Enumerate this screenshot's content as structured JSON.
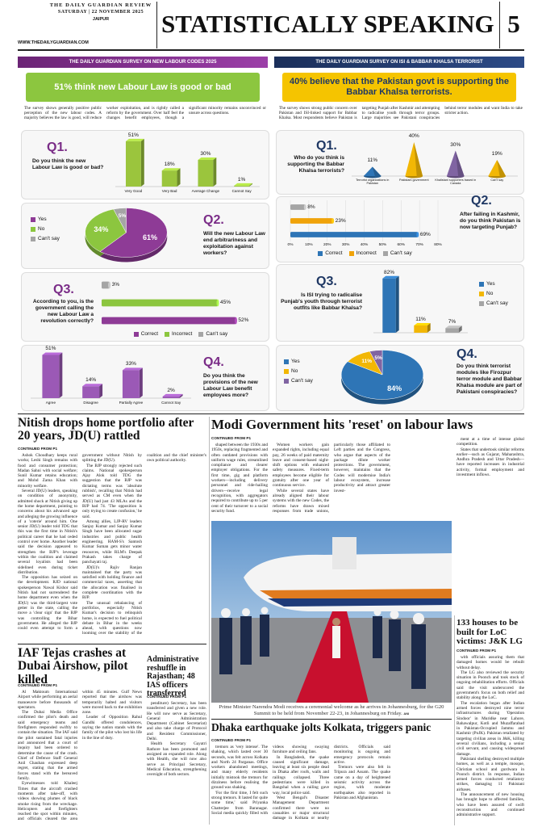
{
  "masthead": {
    "paper": "THE DAILY GUARDIAN REVIEW",
    "date": "SATURDAY | 22 NOVEMBER 2025",
    "city": "JAIPUR",
    "website": "WWW.THEDAILYGUARDIAN.COM",
    "section": "STATISTICALLY SPEAKING",
    "page": "5"
  },
  "labour_survey": {
    "banner": "THE DAILY GUARDIAN SURVEY ON NEW LABOUR CODES 2025",
    "headline": "51% think new Labour Law is good or bad",
    "intro": "The survey shows generally positive public perception of the new labour codes. A majority believes the law is good, will reduce worker exploitation, and is rightly called a reform by the government. Over half feel the changes benefit employees, though a significant minority remains unconvinced or unsure across questions.",
    "questions": [
      {
        "label": "Q1.",
        "text": "Do you think the new Labour Law is good or bad?",
        "chart": {
          "type": "bar",
          "categories": [
            "Very Good",
            "Very Bad",
            "Average Change",
            "Cannot Say"
          ],
          "values": [
            51,
            18,
            30,
            1
          ],
          "value_labels": [
            "51%",
            "18%",
            "30%",
            "1%"
          ],
          "color": "#9bc53d"
        }
      },
      {
        "label": "Q2.",
        "text": "Will the new Labour Law end arbitrariness and exploitation against workers?",
        "chart": {
          "type": "pie",
          "categories": [
            "Yes",
            "No",
            "Can't say"
          ],
          "values": [
            61,
            34,
            5
          ],
          "value_labels": [
            "61%",
            "34%",
            "5%"
          ],
          "colors": [
            "#8e3b96",
            "#8cc63f",
            "#a5a5a5"
          ],
          "legend": "left"
        }
      },
      {
        "label": "Q3.",
        "text": "According to you, is the government calling the new Labour Law a revolution correctly?",
        "chart": {
          "type": "hbar",
          "categories": [
            "Correct",
            "Incorrect",
            "Can't say"
          ],
          "values": [
            52,
            45,
            3
          ],
          "value_labels": [
            "52%",
            "45%",
            "3%"
          ],
          "colors": [
            "#8e3b96",
            "#8cc63f",
            "#a5a5a5"
          ],
          "legend": "bottom"
        }
      },
      {
        "label": "Q4.",
        "text": "Do you think the provisions of the new Labour Law benefit employees more?",
        "chart": {
          "type": "bar",
          "categories": [
            "Agree",
            "Disagree",
            "Partially Agree",
            "Cannot Say"
          ],
          "values": [
            51,
            14,
            33,
            2
          ],
          "value_labels": [
            "51%",
            "14%",
            "33%",
            "2%"
          ],
          "color": "#9b59b6"
        }
      }
    ]
  },
  "babbar_survey": {
    "banner": "THE DAILY GUARDIAN SURVEY ON ISI & BABBAR KHALSA TERRORIST",
    "headline": "40% believe that the Pakistan govt is supporting the Babbar Khalsa terrorists.",
    "intro": "The survey shows strong public concern over Pakistan and ISI-linked support for Babbar Khalsa. Most respondents believe Pakistan is targeting Punjab after Kashmir and attempting to radicalise youth through terror groups. Large majorities see Pakistani conspiracies behind terror modules and want India to take stricter action.",
    "questions": [
      {
        "label": "Q1.",
        "text": "Who do you think is supporting the Babbar Khalsa terrorists?",
        "chart": {
          "type": "cone",
          "categories": [
            "Terrorist organizations in Pakistan",
            "Pakistani government",
            "Khalistani supporters based in Canada",
            "Can't say"
          ],
          "values": [
            11,
            40,
            30,
            19
          ],
          "value_labels": [
            "11%",
            "40%",
            "30%",
            "19%"
          ],
          "colors": [
            "#2e75b6",
            "#f2b705",
            "#8064a2",
            "#f2b705"
          ]
        }
      },
      {
        "label": "Q2.",
        "text": "After failing in Kashmir, do you think Pakistan is now targeting Punjab?",
        "chart": {
          "type": "hbar",
          "categories": [
            "Correct",
            "Incorrect",
            "Can't say"
          ],
          "values": [
            69,
            23,
            8
          ],
          "value_labels": [
            "69%",
            "23%",
            "8%"
          ],
          "colors": [
            "#2e75b6",
            "#f0a30a",
            "#a5a5a5"
          ],
          "xlim": [
            0,
            80
          ],
          "xticks": [
            {
              "value": 0,
              "label": "0%"
            },
            {
              "value": 10,
              "label": "10%"
            },
            {
              "value": 20,
              "label": "20%"
            },
            {
              "value": 30,
              "label": "30%"
            },
            {
              "value": 40,
              "label": "40%"
            },
            {
              "value": 50,
              "label": "50%"
            },
            {
              "value": 60,
              "label": "60%"
            },
            {
              "value": 70,
              "label": "70%"
            },
            {
              "value": 80,
              "label": "80%"
            }
          ],
          "legend": "bottom"
        }
      },
      {
        "label": "Q3.",
        "text": "Is ISI trying to radicalise Punjab's youth through terrorist outfits like Babbar Khalsa?",
        "chart": {
          "type": "bar",
          "categories": [
            "Yes",
            "No",
            "Can't say"
          ],
          "values": [
            82,
            11,
            7
          ],
          "value_labels": [
            "82%",
            "11%",
            "7%"
          ],
          "colors": [
            "#2e75b6",
            "#f2b705",
            "#a5a5a5"
          ],
          "legend": "right"
        }
      },
      {
        "label": "Q4.",
        "text": "Do you think terrorist modules like Firozpur terror module and Babbar Khalsa module are part of Pakistani conspiracies?",
        "chart": {
          "type": "pie",
          "categories": [
            "Yes",
            "No",
            "Can't say"
          ],
          "values": [
            84,
            11,
            5
          ],
          "value_labels": [
            "84%",
            "11%",
            "5%"
          ],
          "colors": [
            "#2e75b6",
            "#f2b705",
            "#8064a2"
          ],
          "legend": "left"
        }
      }
    ]
  },
  "articles": {
    "nitish": {
      "headline": "Nitish drops home portfolio after 20 years, JD(U) rattled",
      "kicker": "CONTINUED FROM P1",
      "body": [
        "Ashok Choudhary keeps rural works; Leshi Singh remains with food and consumer protection; Madan Sahni with social welfare; Sunil Kumar retains education; and Mohd Zama Khan with minority welfare.",
        "Several JD(U) leaders, speaking on condition of anonymity, admitted shock at Nitish giving up the home department, pointing to concerns about his advanced age and alleging the growing influence of a 'coterie' around him. One senior JD(U) leader told TDG that this was the first time in Nitish's political career that he had ceded control over home. Another leader said the decision appeared to strengthen the BJP's leverage within the coalition and claimed several loyalists had been sidelined even during ticket distribution.",
        "The opposition has seized on the development. RJD national spokesperson Nawal Kishor said Nitish had not surrendered the home department even when the JD(U) was the third-largest vote getter in the state, calling the move a 'clear sign' that the BJP was controlling the Bihar government. He alleged the BJP could even attempt to form a government without Nitish by splitting the JD(U).",
        "The BJP strongly rejected such claims. National spokesperson Ajay Alok told TDG the suggestion that the BJP was dictating terms was 'absolute rubbish', recalling that Nitish had served as CM even when the JD(U) had just 43 MLAs and the BJP had 74. 'The opposition is only trying to create confusion,' he said.",
        "Among allies, LJP-RV leaders Sanjay Kumar and Sanjay Kumar Singh have been allocated sugar industries and public health engineering. HAM-S's Santosh Kumar Suman gets minor water resources, while RLM's Deepak Prakash takes charge of panchayati raj.",
        "JD(U)'s Rajiv Ranjan maintained that the party was satisfied with holding finance and commercial taxes, asserting that the allocation was finalised in complete coordination with the BJP.",
        "The unusual rebalancing of portfolios, especially Nitish Kumar's decision to relinquish home, is expected to fuel political debate in Bihar in the weeks ahead, with questions now looming over the stability of the coalition and the chief minister's own political authority."
      ]
    },
    "modi": {
      "headline": "Modi Government hits 'reset' on labour laws",
      "kicker": "CONTINUED FROM P1",
      "body": [
        "shaped between the 1930s and 1950s, replacing fragmented and often outdated provisions with uniform wage rules, streamlined compliance and clearer employer obligations. For the first time, gig and platform workers—including delivery personnel and ride-hailing drivers—receive legal recognition, with aggregators required to contribute up to 5 per cent of their turnover to a social security fund.",
        "Women workers gain expanded rights, including equal pay, 26 weeks of paid maternity leave and consent-based night-shift options with enhanced safety measures. Fixed-term employees become eligible for gratuity after one year of continuous service.",
        "While several states have already aligned their labour systems with the new Codes, the reforms have drawn mixed responses from trade unions, particularly those affiliated to Left parties and the Congress, who argue that aspects of the package dilute worker protections. The government, however, maintains that the Codes will modernise India's labour ecosystem, increase productivity and attract greater invest-"
      ],
      "side": [
        "ment at a time of intense global competition.",
        "States that undertook similar reforms earlier—such as Gujarat, Maharashtra, Andhra Pradesh and Uttar Pradesh—have reported increases in industrial activity, formal employment and investment inflows."
      ],
      "caption": "Prime Minister Narendra Modi receives a ceremonial welcome as he arrives in Johannesburg, for the G20 Summit to be held from November 22-23, in Johannesburg on Friday.",
      "credit": "ANI"
    },
    "houses": {
      "headline": "133 houses to be built for LoC victims: J&K LG",
      "kicker": "CONTINUED FROM P1",
      "body": [
        "with officials assuring them that damaged homes would be rebuilt without delay.",
        "The LG also reviewed the security situation in Poonch and took stock of ongoing rehabilitation efforts. Officials said the visit underscored the government's focus on both relief and stability along the LoC.",
        "The escalation began after Indian armed forces destroyed nine terror infrastructures during 'Operation Sindoor' in Muridke near Lahore, Bahawalpur, Kotli and Muzaffarabad in Pakistan-Occupied Jammu and Kashmir (PoJK). Pakistan retaliated by targeting civilian areas in J&K, killing several civilians, including a senior civil servant, and causing widespread damage.",
        "Pakistani shelling destroyed multiple homes, as well as a temple, mosque, Christian school and gurdwara in Poonch district. In response, Indian armed forces conducted retaliatory strikes, damaging 11 Pakistani airbases.",
        "The announcement of new housing has brought hope to affected families, who have been assured of swift reconstruction and continued administrative support."
      ]
    },
    "iaf": {
      "headline": "IAF Tejas crashes at Dubai Airshow, pilot killed",
      "kicker": "CONTINUED FROM P1",
      "body": [
        "Al Maktoum International Airport while performing an aerial manoeuvre before thousands of spectators.",
        "The Dubai Media Office confirmed the pilot's death and said emergency teams and firefighters responded swiftly to contain the situation. The IAF said the pilot sustained fatal injuries and announced that a court of inquiry had been ordered to determine the cause of the crash. Chief of Defence Staff General Anil Chauhan expressed deep regret, stating that the armed forces stand with the bereaved family.",
        "Eyewitnesses told Khaleej Times that the aircraft crashed moments after take-off, with videos showing plumes of black smoke rising from the wreckage. Helicopters and firefighters reached the spot within minutes, and officials cleared the area within 45 minutes. Gulf News reported that the airshow was temporarily halted and visitors were moved back to the exhibition zone.",
        "Leader of Opposition Rahul Gandhi offered condolences, saying the nation stands with the family of the pilot who lost his life in the line of duty."
      ]
    },
    "reshuffle": {
      "headline": "Administrative reshuffle in Rajasthan; 48 IAS officers transferred",
      "kicker": "CONTINUED FROM P1",
      "body": [
        "penditure) Secretary, has been transferred and given a new role. He will now serve as Secretary, General Administration Department (Cabinet Secretariat) and also take charge of Protocol and Resident Commissioner, Delhi.",
        "Health Secretary Gayatri Rathore has been promoted and assigned an expanded role. Along with Health, she will now also serve as Principal Secretary, Medical Education, strengthening oversight of both sectors."
      ]
    },
    "dhaka": {
      "headline": "Dhaka earthquake jolts Kolkata, triggers panic",
      "kicker": "CONTINUED FROM P1",
      "body": [
        "tremors as 'very intense'. The shaking, which lasted over 30 seconds, was felt across Kolkata and North 24 Parganas. Office workers abandoned meetings, and many elderly residents initially mistook the tremors for dizziness before realising the ground was shaking.",
        "'For the first time, I felt such strong tremors. It lasted for quite some time,' said Priyanka Chatterjee from Baranagar. Social media quickly filled with videos showing swaying furniture and ceiling fans.",
        "In Bangladesh, the quake caused significant damage, leaving at least six people dead in Dhaka after roofs, walls and railings collapsed. Three pedestrians were killed in Bangshal when a railing gave way, local police said.",
        "West Bengal's Disaster Management Department confirmed there were no casualties or major structural damage in Kolkata or nearby districts. Officials said monitoring is ongoing and emergency protocols remain active.",
        "Tremors were also felt in Tripura and Assam. The quake came on a day of heightened seismic activity across the region, with moderate earthquakes also reported in Pakistan and Afghanistan."
      ]
    }
  }
}
